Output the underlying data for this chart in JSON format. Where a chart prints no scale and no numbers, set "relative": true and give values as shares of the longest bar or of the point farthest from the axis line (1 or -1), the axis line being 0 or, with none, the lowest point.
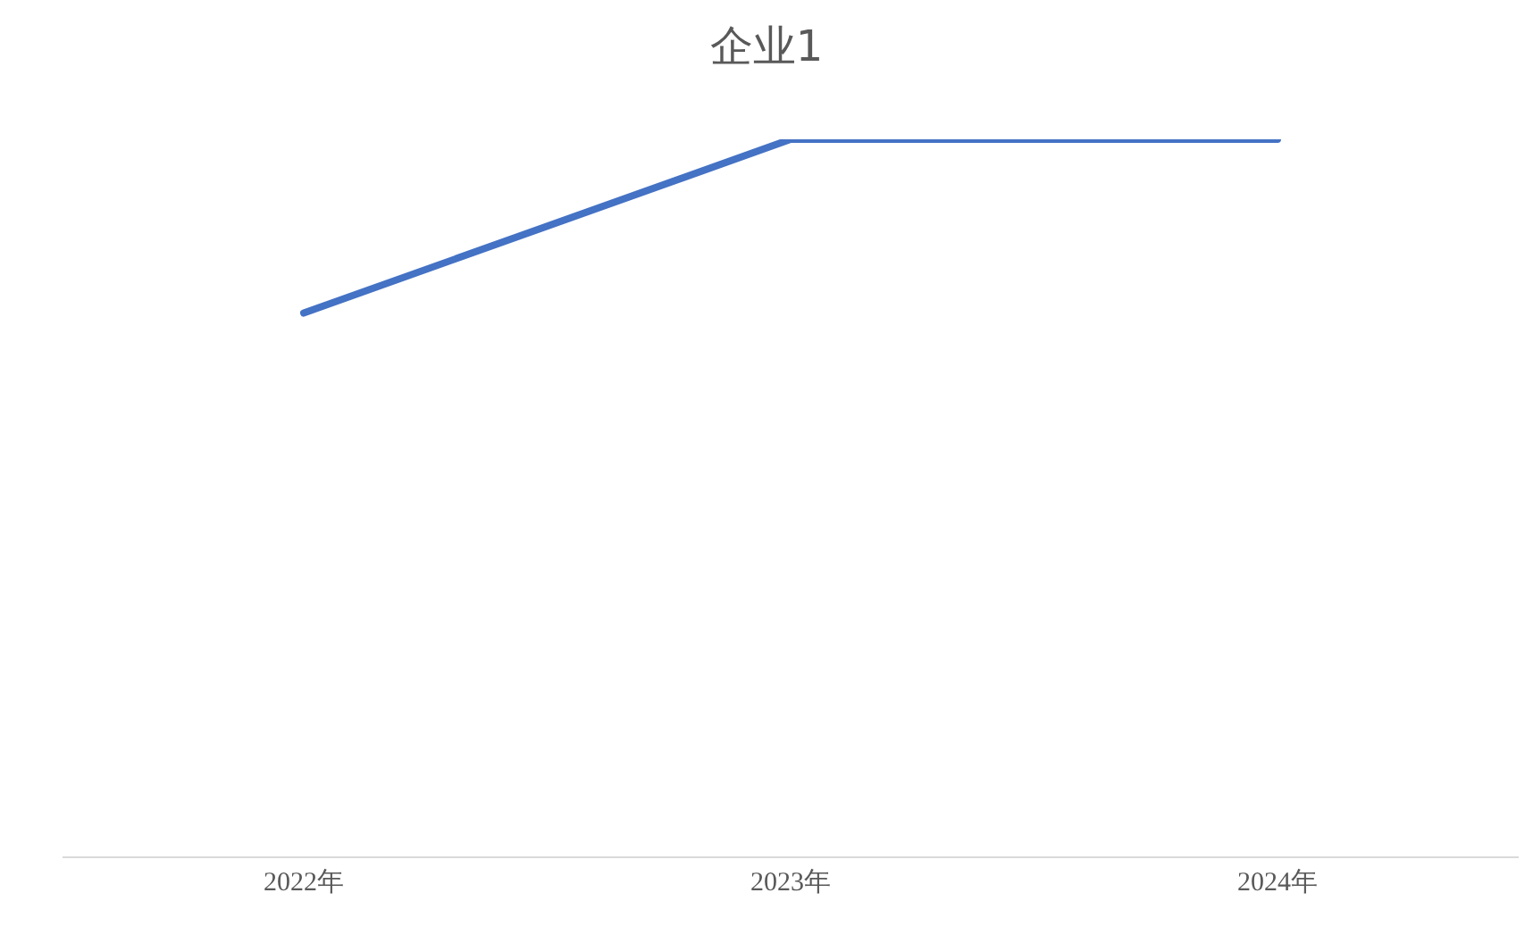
{
  "chart_data": {
    "type": "line",
    "title": "企业1",
    "relative": true,
    "categories": [
      "2022年",
      "2023年",
      "2024年"
    ],
    "series": [
      {
        "color": "#4472c4",
        "values": [
          0.758,
          1,
          1
        ]
      }
    ],
    "grid": false,
    "legend": false,
    "marker": "none",
    "line_style": "solid"
  }
}
